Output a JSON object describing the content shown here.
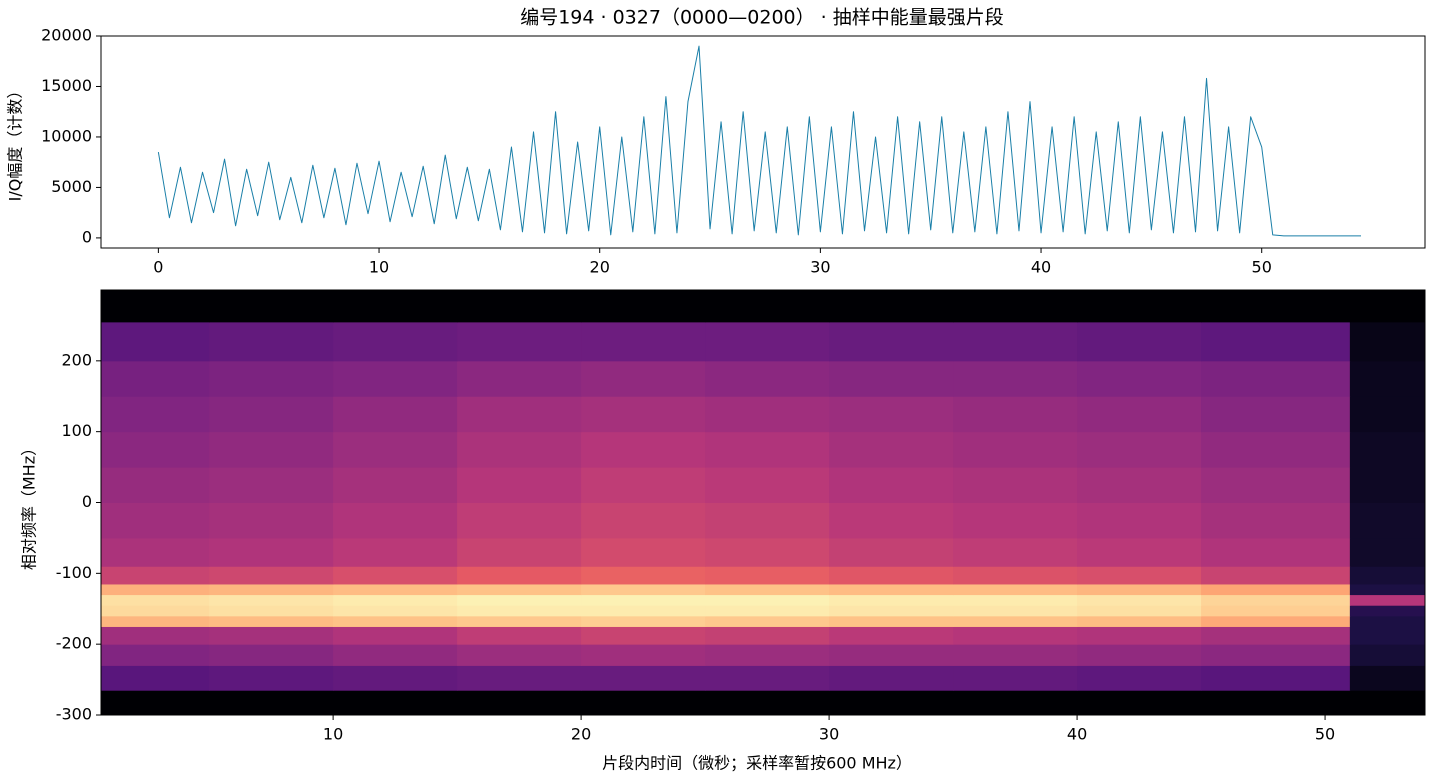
{
  "chart_data": [
    {
      "type": "line",
      "title": "编号194 · 0327（0000—0200） · 抽样中能量最强片段",
      "ylabel": "I/Q幅度（计数）",
      "color": "#1a7fa8",
      "x": [
        0,
        0.5,
        1,
        1.5,
        2,
        2.5,
        3,
        3.5,
        4,
        4.5,
        5,
        5.5,
        6,
        6.5,
        7,
        7.5,
        8,
        8.5,
        9,
        9.5,
        10,
        10.5,
        11,
        11.5,
        12,
        12.5,
        13,
        13.5,
        14,
        14.5,
        15,
        15.5,
        16,
        16.5,
        17,
        17.5,
        18,
        18.5,
        19,
        19.5,
        20,
        20.5,
        21,
        21.5,
        22,
        22.5,
        23,
        23.5,
        24,
        24.5,
        25,
        25.5,
        26,
        26.5,
        27,
        27.5,
        28,
        28.5,
        29,
        29.5,
        30,
        30.5,
        31,
        31.5,
        32,
        32.5,
        33,
        33.5,
        34,
        34.5,
        35,
        35.5,
        36,
        36.5,
        37,
        37.5,
        38,
        38.5,
        39,
        39.5,
        40,
        40.5,
        41,
        41.5,
        42,
        42.5,
        43,
        43.5,
        44,
        44.5,
        45,
        45.5,
        46,
        46.5,
        47,
        47.5,
        48,
        48.5,
        49,
        49.5,
        50,
        50.5,
        51,
        51.5,
        52,
        52.5,
        53,
        53.5,
        54,
        54.5
      ],
      "values": [
        8500,
        2000,
        7000,
        1500,
        6500,
        2500,
        7800,
        1200,
        6800,
        2200,
        7500,
        1800,
        6000,
        1500,
        7200,
        2000,
        6900,
        1300,
        7400,
        2400,
        7600,
        1600,
        6500,
        2100,
        7100,
        1400,
        8200,
        1900,
        7000,
        1700,
        6800,
        800,
        9000,
        600,
        10500,
        500,
        12500,
        400,
        9500,
        700,
        11000,
        300,
        10000,
        600,
        12000,
        400,
        14000,
        500,
        13500,
        19000,
        900,
        11500,
        400,
        12500,
        700,
        10500,
        500,
        11000,
        300,
        12000,
        600,
        11000,
        400,
        12500,
        700,
        10000,
        500,
        12000,
        400,
        11500,
        800,
        12000,
        500,
        10500,
        600,
        11000,
        400,
        12500,
        700,
        13500,
        500,
        11000,
        600,
        12000,
        400,
        10500,
        700,
        11500,
        500,
        12000,
        800,
        10500,
        500,
        12000,
        600,
        15800,
        700,
        11000,
        500,
        12000,
        9000,
        300,
        200,
        200,
        200,
        200,
        200,
        200,
        200,
        200
      ],
      "xlim": [
        -2.6,
        57.4
      ],
      "xticks": [
        0,
        10,
        20,
        30,
        40,
        50
      ],
      "ylim": [
        -1000,
        20000
      ],
      "yticks": [
        0,
        5000,
        10000,
        15000,
        20000
      ]
    },
    {
      "type": "heatmap",
      "xlabel": "片段内时间（微秒；采样率暂按600 MHz）",
      "ylabel": "相对频率（MHz）",
      "colormap": "magma",
      "x_edges": [
        0.64,
        5,
        10,
        15,
        20,
        25,
        30,
        35,
        40,
        45,
        51,
        54.03
      ],
      "y_edges": [
        -300,
        -265,
        -230,
        -200,
        -175,
        -160,
        -145,
        -130,
        -115,
        -90,
        -50,
        0,
        50,
        100,
        150,
        200,
        255,
        300
      ],
      "z": [
        [
          -80,
          -80,
          -80,
          -80,
          -80,
          -80,
          -80,
          -80,
          -80,
          -80,
          -80
        ],
        [
          -58,
          -57,
          -56,
          -55,
          -55,
          -55,
          -56,
          -56,
          -57,
          -58,
          -76
        ],
        [
          -50,
          -49,
          -47,
          -45,
          -44,
          -45,
          -46,
          -46,
          -47,
          -48,
          -72
        ],
        [
          -44,
          -43,
          -41,
          -38,
          -36,
          -37,
          -39,
          -40,
          -41,
          -43,
          -70
        ],
        [
          -12,
          -11,
          -10,
          -9,
          -8,
          -9,
          -10,
          -10,
          -11,
          -14,
          -70
        ],
        [
          -6,
          -5,
          -4,
          -3,
          -3,
          -3,
          -4,
          -4,
          -5,
          -8,
          -68
        ],
        [
          -5,
          -4,
          -3,
          -2,
          -2,
          -2,
          -3,
          -3,
          -4,
          -7,
          -40
        ],
        [
          -13,
          -12,
          -11,
          -10,
          -9,
          -10,
          -11,
          -11,
          -12,
          -15,
          -70
        ],
        [
          -36,
          -35,
          -33,
          -30,
          -28,
          -29,
          -31,
          -32,
          -33,
          -36,
          -72
        ],
        [
          -42,
          -41,
          -39,
          -36,
          -34,
          -35,
          -37,
          -38,
          -39,
          -41,
          -74
        ],
        [
          -44,
          -43,
          -41,
          -38,
          -36,
          -37,
          -39,
          -40,
          -41,
          -43,
          -74
        ],
        [
          -46,
          -45,
          -43,
          -40,
          -38,
          -39,
          -41,
          -42,
          -43,
          -45,
          -75
        ],
        [
          -48,
          -47,
          -45,
          -42,
          -40,
          -41,
          -43,
          -44,
          -45,
          -47,
          -75
        ],
        [
          -50,
          -49,
          -47,
          -44,
          -43,
          -44,
          -45,
          -46,
          -47,
          -49,
          -76
        ],
        [
          -52,
          -51,
          -50,
          -48,
          -47,
          -48,
          -49,
          -49,
          -50,
          -51,
          -76
        ],
        [
          -57,
          -56,
          -55,
          -54,
          -54,
          -54,
          -55,
          -55,
          -56,
          -57,
          -77
        ],
        [
          -80,
          -80,
          -80,
          -80,
          -80,
          -80,
          -80,
          -80,
          -80,
          -80,
          -80
        ]
      ],
      "zlim": [
        -80,
        0
      ],
      "xlim": [
        0.64,
        54.03
      ],
      "xticks": [
        10,
        20,
        30,
        40,
        50
      ],
      "ylim": [
        -300,
        300
      ],
      "yticks": [
        -300,
        -200,
        -100,
        0,
        100,
        200
      ]
    }
  ]
}
